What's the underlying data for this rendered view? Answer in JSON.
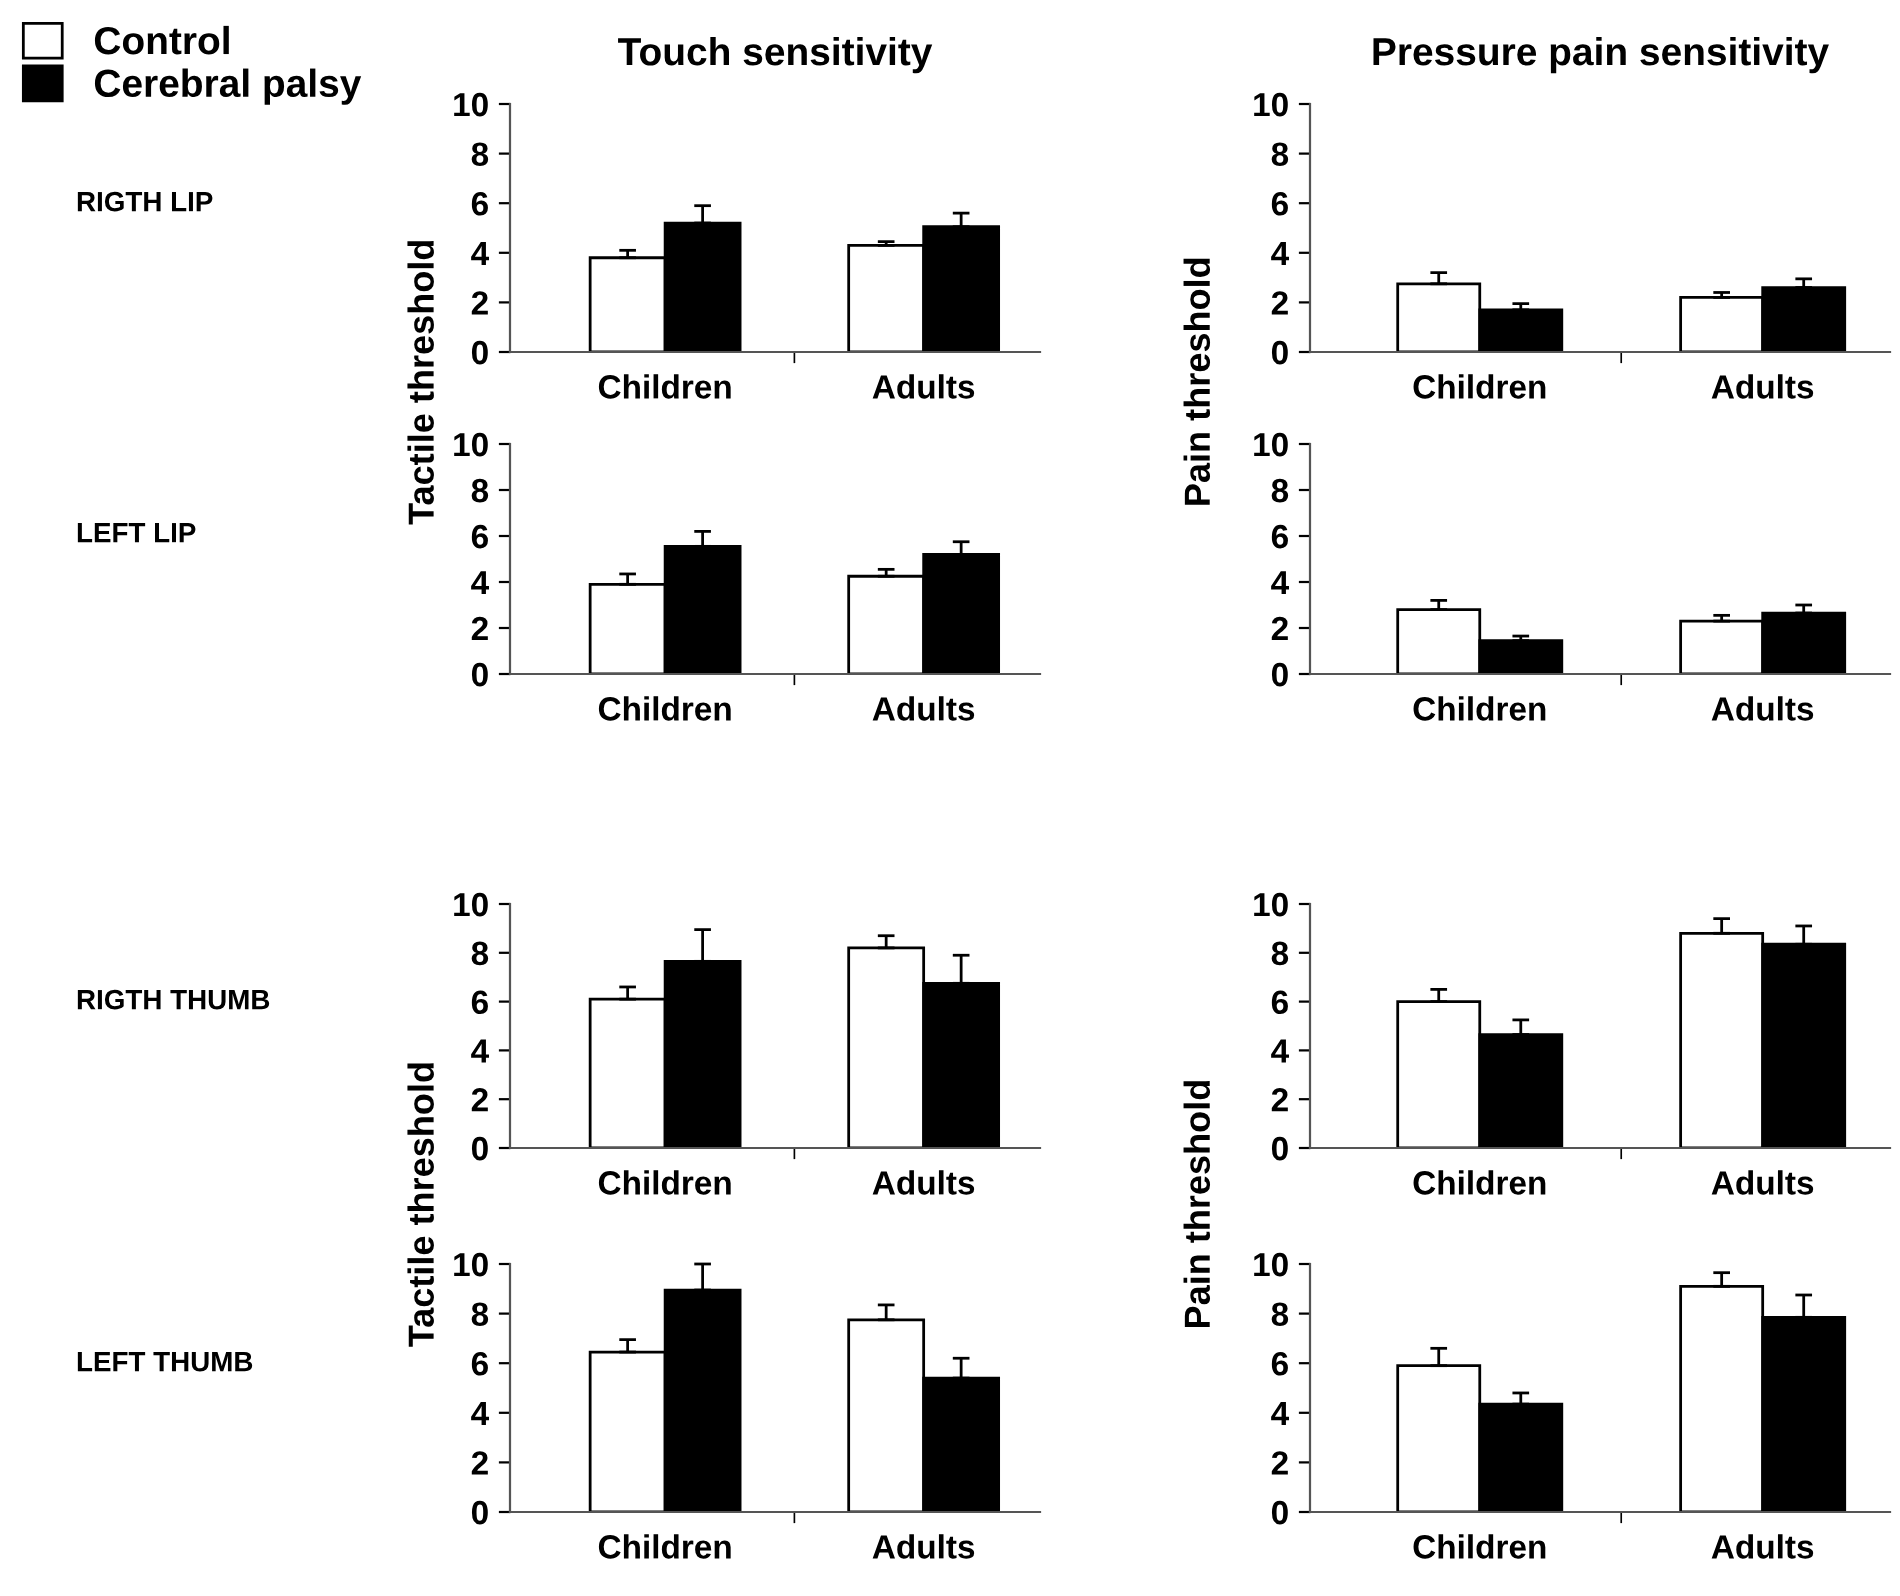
{
  "chart_data": [
    {
      "type": "bar",
      "title": "Touch sensitivity",
      "ylabel": "Tactile threshold",
      "annotations": [
        "RIGTH LIP"
      ],
      "categories": [
        "Children",
        "Adults"
      ],
      "ylim": [
        0,
        10
      ],
      "yticks": [
        0,
        2,
        4,
        6,
        8,
        10
      ],
      "legend": "top left",
      "grid": false,
      "series": [
        {
          "name": "Control",
          "color": "#ffffff",
          "values": [
            3.8,
            4.3
          ],
          "errors": [
            [
              3.8,
              4.1
            ],
            [
              4.3,
              4.45
            ]
          ]
        },
        {
          "name": "Cerebral palsy",
          "color": "#000000",
          "values": [
            5.2,
            5.05
          ],
          "errors": [
            [
              5.2,
              5.9
            ],
            [
              5.05,
              5.6
            ]
          ]
        }
      ]
    },
    {
      "type": "bar",
      "title": "Pressure pain sensitivity",
      "ylabel": "Pain threshold",
      "categories": [
        "Children",
        "Adults"
      ],
      "ylim": [
        0,
        10
      ],
      "yticks": [
        0,
        2,
        4,
        6,
        8,
        10
      ],
      "grid": false,
      "series": [
        {
          "color": "#ffffff",
          "values": [
            2.75,
            2.2
          ],
          "errors": [
            [
              2.75,
              3.2
            ],
            [
              2.2,
              2.4
            ]
          ]
        },
        {
          "color": "#000000",
          "values": [
            1.7,
            2.6
          ],
          "errors": [
            [
              1.7,
              1.95
            ],
            [
              2.6,
              2.95
            ]
          ]
        }
      ]
    },
    {
      "type": "bar",
      "annotations": [
        "LEFT LIP"
      ],
      "categories": [
        "Children",
        "Adults"
      ],
      "ylim": [
        0,
        10
      ],
      "yticks": [
        0,
        2,
        4,
        6,
        8,
        10
      ],
      "grid": false,
      "series": [
        {
          "color": "#ffffff",
          "values": [
            3.9,
            4.25
          ],
          "errors": [
            [
              3.9,
              4.35
            ],
            [
              4.25,
              4.55
            ]
          ]
        },
        {
          "color": "#000000",
          "values": [
            5.55,
            5.2
          ],
          "errors": [
            [
              5.55,
              6.2
            ],
            [
              5.2,
              5.75
            ]
          ]
        }
      ]
    },
    {
      "type": "bar",
      "categories": [
        "Children",
        "Adults"
      ],
      "ylim": [
        0,
        10
      ],
      "yticks": [
        0,
        2,
        4,
        6,
        8,
        10
      ],
      "grid": false,
      "series": [
        {
          "color": "#ffffff",
          "values": [
            2.8,
            2.3
          ],
          "errors": [
            [
              2.8,
              3.2
            ],
            [
              2.3,
              2.55
            ]
          ]
        },
        {
          "color": "#000000",
          "values": [
            1.45,
            2.65
          ],
          "errors": [
            [
              1.45,
              1.65
            ],
            [
              2.65,
              3.0
            ]
          ]
        }
      ]
    },
    {
      "type": "bar",
      "ylabel": "Tactile threshold",
      "annotations": [
        "RIGTH THUMB"
      ],
      "categories": [
        "Children",
        "Adults"
      ],
      "ylim": [
        0,
        10
      ],
      "yticks": [
        0,
        2,
        4,
        6,
        8,
        10
      ],
      "grid": false,
      "series": [
        {
          "color": "#ffffff",
          "values": [
            6.1,
            8.2
          ],
          "errors": [
            [
              6.1,
              6.6
            ],
            [
              8.2,
              8.7
            ]
          ]
        },
        {
          "color": "#000000",
          "values": [
            7.65,
            6.75
          ],
          "errors": [
            [
              7.65,
              8.95
            ],
            [
              6.75,
              7.9
            ]
          ]
        }
      ]
    },
    {
      "type": "bar",
      "ylabel": "Pain threshold",
      "categories": [
        "Children",
        "Adults"
      ],
      "ylim": [
        0,
        10
      ],
      "yticks": [
        0,
        2,
        4,
        6,
        8,
        10
      ],
      "grid": false,
      "series": [
        {
          "color": "#ffffff",
          "values": [
            6.0,
            8.8
          ],
          "errors": [
            [
              6.0,
              6.5
            ],
            [
              8.8,
              9.4
            ]
          ]
        },
        {
          "color": "#000000",
          "values": [
            4.65,
            8.35
          ],
          "errors": [
            [
              4.65,
              5.25
            ],
            [
              8.35,
              9.1
            ]
          ]
        }
      ]
    },
    {
      "type": "bar",
      "annotations": [
        "LEFT THUMB"
      ],
      "categories": [
        "Children",
        "Adults"
      ],
      "ylim": [
        0,
        10
      ],
      "yticks": [
        0,
        2,
        4,
        6,
        8,
        10
      ],
      "grid": false,
      "series": [
        {
          "color": "#ffffff",
          "values": [
            6.45,
            7.75
          ],
          "errors": [
            [
              6.45,
              6.95
            ],
            [
              7.75,
              8.35
            ]
          ]
        },
        {
          "color": "#000000",
          "values": [
            8.95,
            5.4
          ],
          "errors": [
            [
              8.95,
              10.0
            ],
            [
              5.4,
              6.2
            ]
          ]
        }
      ]
    },
    {
      "type": "bar",
      "categories": [
        "Children",
        "Adults"
      ],
      "ylim": [
        0,
        10
      ],
      "yticks": [
        0,
        2,
        4,
        6,
        8,
        10
      ],
      "grid": false,
      "series": [
        {
          "color": "#ffffff",
          "values": [
            5.9,
            9.1
          ],
          "errors": [
            [
              5.9,
              6.6
            ],
            [
              9.1,
              9.65
            ]
          ]
        },
        {
          "color": "#000000",
          "values": [
            4.35,
            7.85
          ],
          "errors": [
            [
              4.35,
              4.8
            ],
            [
              7.85,
              8.75
            ]
          ]
        }
      ]
    }
  ]
}
